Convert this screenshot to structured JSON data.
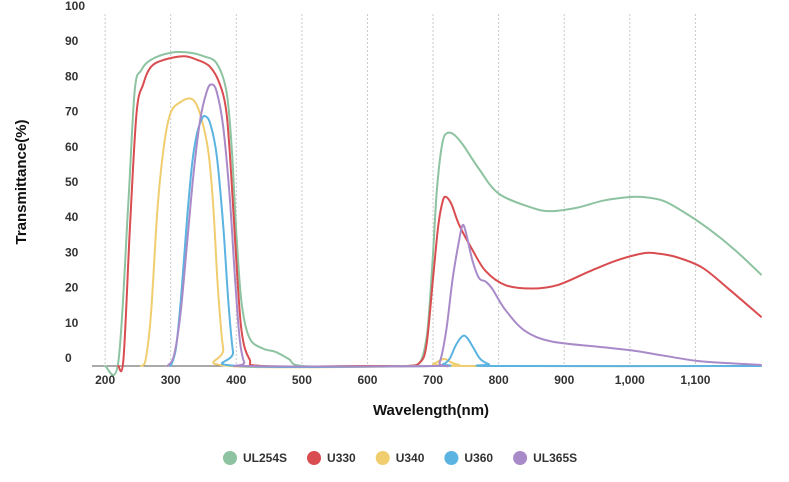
{
  "chart_data": {
    "type": "line",
    "title": "",
    "xlabel": "Wavelength(nm)",
    "ylabel": "Transmittance(%)",
    "xlim": [
      180,
      1200
    ],
    "ylim": [
      0,
      100
    ],
    "x_ticks": [
      200,
      300,
      400,
      500,
      600,
      700,
      800,
      900,
      1000,
      1100
    ],
    "x_tick_labels": [
      "200",
      "300",
      "400",
      "500",
      "600",
      "700",
      "800",
      "900",
      "1,000",
      "1,100"
    ],
    "y_ticks": [
      0,
      10,
      20,
      30,
      40,
      50,
      60,
      70,
      80,
      90,
      100
    ],
    "y_tick_labels": [
      "0",
      "10",
      "20",
      "30",
      "40",
      "50",
      "60",
      "70",
      "80",
      "90",
      "100"
    ],
    "grid": "vertical",
    "legend_position": "bottom",
    "series": [
      {
        "name": "UL254S",
        "color": "#8dc3a0",
        "points": [
          [
            200,
            0
          ],
          [
            220,
            1
          ],
          [
            235,
            45
          ],
          [
            245,
            78
          ],
          [
            255,
            84
          ],
          [
            270,
            87
          ],
          [
            300,
            89
          ],
          [
            330,
            89
          ],
          [
            350,
            88
          ],
          [
            370,
            86
          ],
          [
            385,
            78
          ],
          [
            393,
            62
          ],
          [
            400,
            38
          ],
          [
            408,
            18
          ],
          [
            420,
            8
          ],
          [
            440,
            5
          ],
          [
            460,
            4
          ],
          [
            480,
            2
          ],
          [
            500,
            0
          ],
          [
            600,
            0
          ],
          [
            660,
            0
          ],
          [
            680,
            1
          ],
          [
            690,
            8
          ],
          [
            695,
            18
          ],
          [
            700,
            32
          ],
          [
            705,
            48
          ],
          [
            710,
            58
          ],
          [
            715,
            64
          ],
          [
            720,
            66
          ],
          [
            730,
            66
          ],
          [
            745,
            63
          ],
          [
            770,
            56
          ],
          [
            800,
            49
          ],
          [
            850,
            45
          ],
          [
            880,
            44
          ],
          [
            920,
            45
          ],
          [
            960,
            47
          ],
          [
            1000,
            48
          ],
          [
            1020,
            48
          ],
          [
            1050,
            47
          ],
          [
            1080,
            44
          ],
          [
            1120,
            39
          ],
          [
            1160,
            33
          ],
          [
            1200,
            26
          ]
        ]
      },
      {
        "name": "U330",
        "color": "#d94c4f",
        "points": [
          [
            220,
            0
          ],
          [
            228,
            2
          ],
          [
            238,
            40
          ],
          [
            248,
            72
          ],
          [
            258,
            80
          ],
          [
            270,
            85
          ],
          [
            290,
            87
          ],
          [
            320,
            88
          ],
          [
            340,
            87
          ],
          [
            360,
            85
          ],
          [
            375,
            80
          ],
          [
            385,
            72
          ],
          [
            392,
            55
          ],
          [
            400,
            30
          ],
          [
            408,
            10
          ],
          [
            420,
            2
          ],
          [
            440,
            0
          ],
          [
            600,
            0
          ],
          [
            660,
            0
          ],
          [
            680,
            1
          ],
          [
            690,
            6
          ],
          [
            700,
            25
          ],
          [
            708,
            40
          ],
          [
            715,
            47
          ],
          [
            720,
            48
          ],
          [
            728,
            46
          ],
          [
            740,
            40
          ],
          [
            760,
            33
          ],
          [
            780,
            27
          ],
          [
            810,
            23
          ],
          [
            850,
            22
          ],
          [
            890,
            23
          ],
          [
            940,
            27
          ],
          [
            980,
            30
          ],
          [
            1020,
            32
          ],
          [
            1040,
            32
          ],
          [
            1070,
            31
          ],
          [
            1110,
            28
          ],
          [
            1150,
            22
          ],
          [
            1200,
            14
          ]
        ]
      },
      {
        "name": "U340",
        "color": "#f0cd6e",
        "points": [
          [
            255,
            0
          ],
          [
            262,
            2
          ],
          [
            270,
            15
          ],
          [
            280,
            45
          ],
          [
            290,
            63
          ],
          [
            300,
            72
          ],
          [
            315,
            75
          ],
          [
            330,
            76
          ],
          [
            340,
            74
          ],
          [
            350,
            68
          ],
          [
            358,
            60
          ],
          [
            365,
            45
          ],
          [
            372,
            22
          ],
          [
            380,
            5
          ],
          [
            390,
            0
          ],
          [
            690,
            0
          ],
          [
            700,
            0.5
          ],
          [
            710,
            1.5
          ],
          [
            718,
            2
          ],
          [
            728,
            1
          ],
          [
            740,
            0.3
          ],
          [
            760,
            0
          ],
          [
            1200,
            0
          ]
        ]
      },
      {
        "name": "U360",
        "color": "#5ab3e0",
        "points": [
          [
            300,
            0
          ],
          [
            308,
            5
          ],
          [
            316,
            20
          ],
          [
            325,
            42
          ],
          [
            333,
            58
          ],
          [
            340,
            66
          ],
          [
            347,
            70
          ],
          [
            352,
            71
          ],
          [
            360,
            69
          ],
          [
            370,
            60
          ],
          [
            380,
            40
          ],
          [
            388,
            18
          ],
          [
            395,
            4
          ],
          [
            402,
            0
          ],
          [
            700,
            0
          ],
          [
            715,
            0.5
          ],
          [
            725,
            2
          ],
          [
            735,
            6
          ],
          [
            745,
            8.5
          ],
          [
            752,
            8
          ],
          [
            762,
            5
          ],
          [
            772,
            2
          ],
          [
            785,
            0.5
          ],
          [
            800,
            0
          ],
          [
            1200,
            0
          ]
        ]
      },
      {
        "name": "UL365S",
        "color": "#a98ac9",
        "points": [
          [
            295,
            0
          ],
          [
            305,
            3
          ],
          [
            315,
            15
          ],
          [
            325,
            35
          ],
          [
            335,
            55
          ],
          [
            345,
            70
          ],
          [
            355,
            78
          ],
          [
            362,
            80
          ],
          [
            370,
            78
          ],
          [
            380,
            68
          ],
          [
            390,
            48
          ],
          [
            398,
            25
          ],
          [
            405,
            8
          ],
          [
            412,
            1
          ],
          [
            420,
            0
          ],
          [
            700,
            0
          ],
          [
            710,
            1
          ],
          [
            720,
            10
          ],
          [
            730,
            25
          ],
          [
            740,
            36
          ],
          [
            745,
            40
          ],
          [
            750,
            38
          ],
          [
            760,
            30
          ],
          [
            770,
            25
          ],
          [
            780,
            24
          ],
          [
            790,
            22
          ],
          [
            810,
            16
          ],
          [
            840,
            10
          ],
          [
            880,
            7
          ],
          [
            950,
            5.5
          ],
          [
            1000,
            4.5
          ],
          [
            1050,
            3
          ],
          [
            1100,
            1.5
          ],
          [
            1150,
            0.8
          ],
          [
            1200,
            0.3
          ]
        ]
      }
    ]
  }
}
